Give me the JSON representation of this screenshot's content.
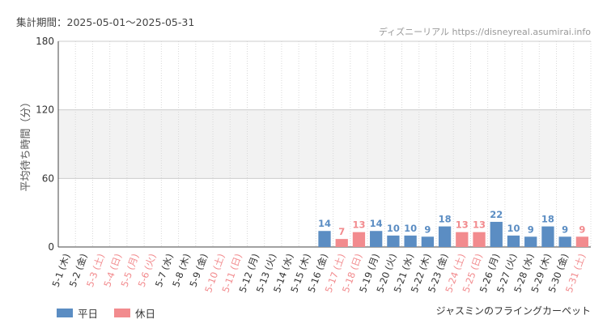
{
  "header": {
    "period": "集計期間：2025-05-01〜2025-05-31",
    "site": "ディズニーリアル https://disneyreal.asumirai.info"
  },
  "ride_name": "ジャスミンのフライングカーペット",
  "legend": [
    {
      "name": "平日",
      "color": "#5b8dc3"
    },
    {
      "name": "休日",
      "color": "#f28b8e"
    }
  ],
  "chart_data": {
    "type": "bar",
    "ylabel": "平均待ち時間（分）",
    "ylim": [
      0,
      180
    ],
    "yticks": [
      0,
      60,
      120,
      180
    ],
    "categories": [
      "5-1 (木)",
      "5-2 (金)",
      "5-3 (土)",
      "5-4 (日)",
      "5-5 (月)",
      "5-6 (火)",
      "5-7 (水)",
      "5-8 (木)",
      "5-9 (金)",
      "5-10 (土)",
      "5-11 (日)",
      "5-12 (月)",
      "5-13 (火)",
      "5-14 (水)",
      "5-15 (木)",
      "5-16 (金)",
      "5-17 (土)",
      "5-18 (日)",
      "5-19 (月)",
      "5-20 (火)",
      "5-21 (水)",
      "5-22 (木)",
      "5-23 (金)",
      "5-24 (土)",
      "5-25 (日)",
      "5-26 (月)",
      "5-27 (火)",
      "5-28 (水)",
      "5-29 (木)",
      "5-30 (金)",
      "5-31 (土)"
    ],
    "values": [
      null,
      null,
      null,
      null,
      null,
      null,
      null,
      null,
      null,
      null,
      null,
      null,
      null,
      null,
      null,
      14,
      7,
      13,
      14,
      10,
      10,
      9,
      18,
      13,
      13,
      22,
      10,
      9,
      18,
      9,
      9
    ],
    "holiday": [
      false,
      false,
      true,
      true,
      true,
      true,
      false,
      false,
      false,
      true,
      true,
      false,
      false,
      false,
      false,
      false,
      true,
      true,
      false,
      false,
      false,
      false,
      false,
      true,
      true,
      false,
      false,
      false,
      false,
      false,
      true
    ],
    "grid": true,
    "shaded_band": [
      60,
      120
    ]
  }
}
